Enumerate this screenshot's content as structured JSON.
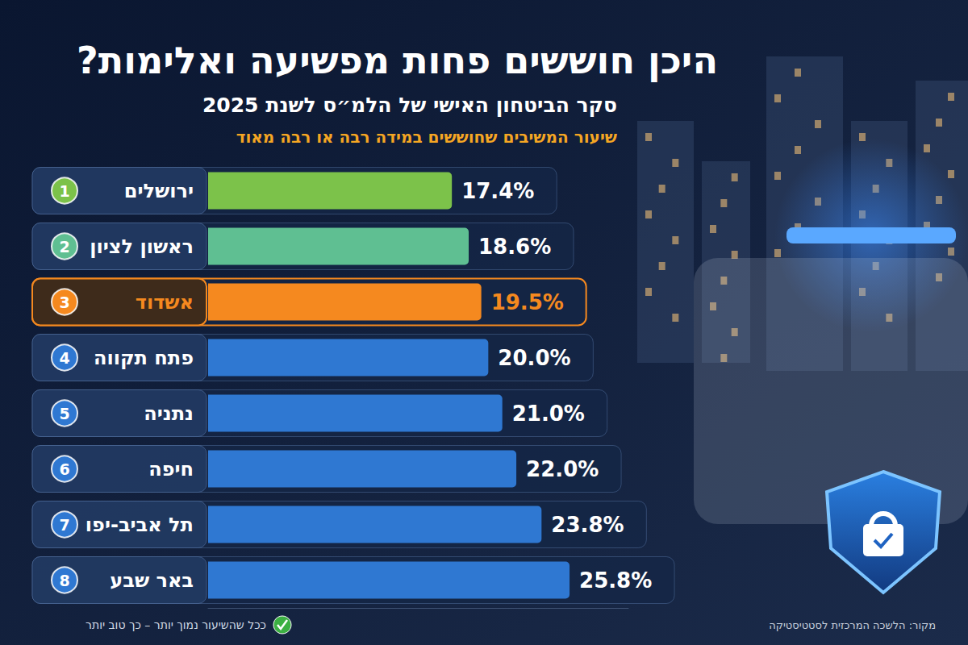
{
  "chart_data": {
    "type": "bar",
    "title": "היכן חוששים פחות מפשיעה ואלימות?",
    "subtitle": "סקר הביטחון האישי של הלמ״ס לשנת 2025",
    "description": "שיעור המשיבים שחוששים במידה רבה או רבה מאוד",
    "categories": [
      "ירושלים",
      "ראשון לציון",
      "אשדוד",
      "פתח תקווה",
      "נתניה",
      "חיפה",
      "תל אביב-יפו",
      "באר שבע"
    ],
    "ranks": [
      1,
      2,
      3,
      4,
      5,
      6,
      7,
      8
    ],
    "values": [
      17.4,
      18.6,
      19.5,
      20.0,
      21.0,
      22.0,
      23.8,
      25.8
    ],
    "value_labels": [
      "17.4%",
      "18.6%",
      "19.5%",
      "20.0%",
      "21.0%",
      "22.0%",
      "23.8%",
      "25.8%"
    ],
    "colors": [
      "#7cc24a",
      "#5fbf92",
      "#f5891f",
      "#2f78d2",
      "#2f78d2",
      "#2f78d2",
      "#2f78d2",
      "#2f78d2"
    ],
    "orientation": "horizontal",
    "xlim": [
      0,
      30
    ],
    "grid": false,
    "tick_labels": false,
    "data_labels": true,
    "note": "ככל שהשיעור נמוך יותר – כך טוב יותר",
    "source": "מקור: הלשכה המרכזית לסטטיסטיקה"
  }
}
